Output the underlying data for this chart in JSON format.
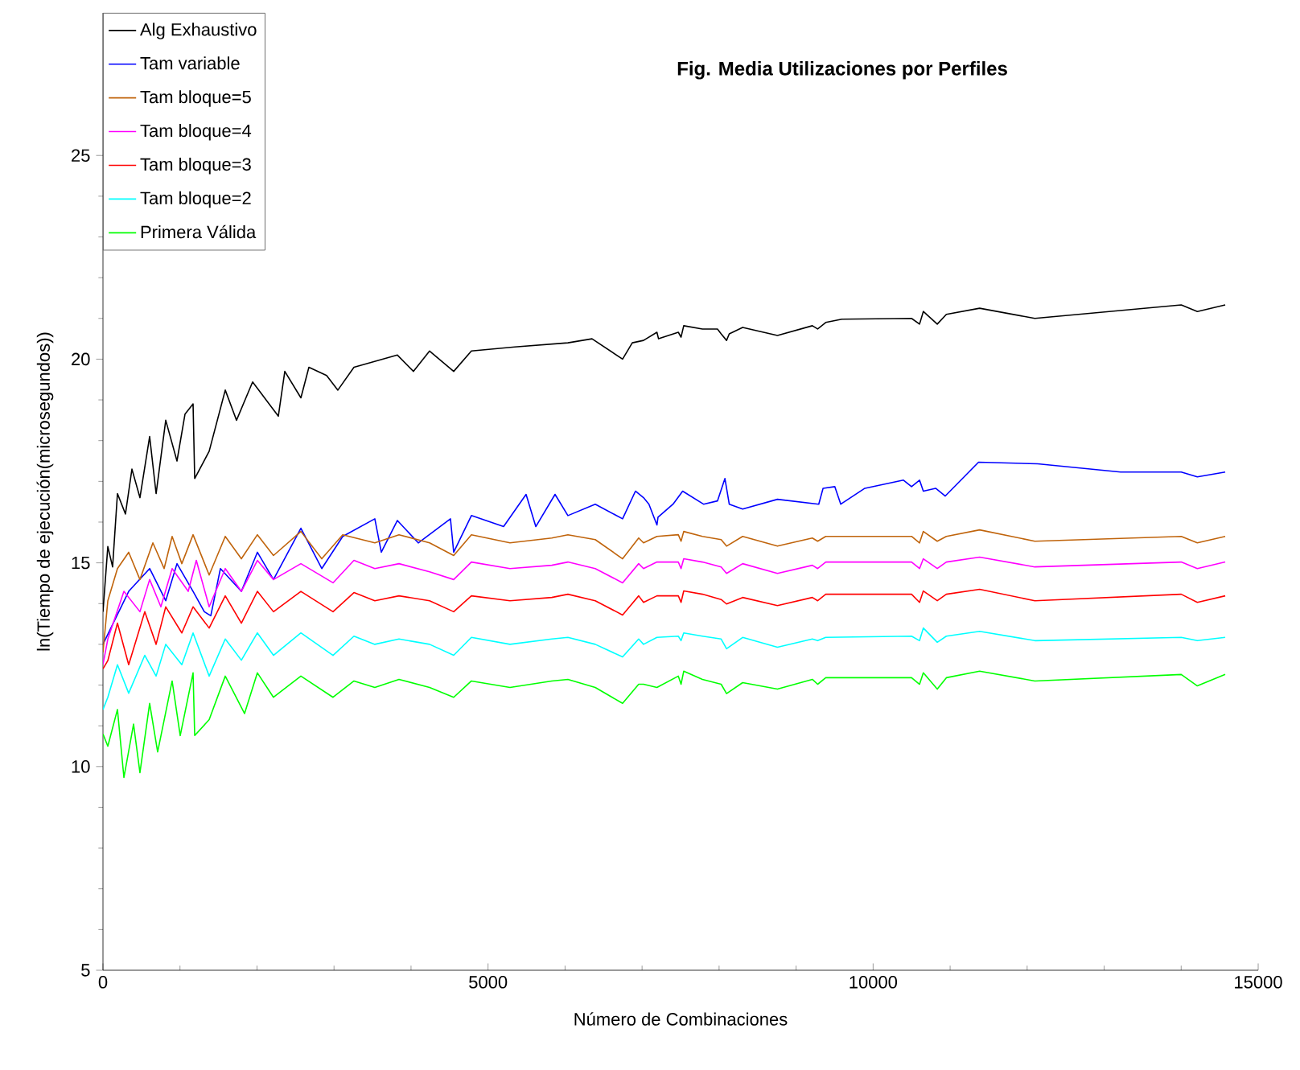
{
  "chart_data": {
    "type": "line",
    "title": "Fig. Media Utilizaciones por Perfiles",
    "xlabel": "Número de Combinaciones",
    "ylabel": "ln(Tiempo de ejecución(microsegundos))",
    "xlim": [
      0,
      15000
    ],
    "ylim": [
      5,
      28.5
    ],
    "xticks": [
      0,
      5000,
      10000,
      15000
    ],
    "yticks": [
      5,
      10,
      15,
      20,
      25
    ],
    "legend": "top left",
    "series": [
      {
        "name": "Alg Exhaustivo",
        "color": "#000000",
        "x": [
          0,
          63,
          125,
          188,
          292,
          376,
          480,
          606,
          690,
          815,
          961,
          1065,
          1170,
          1191,
          1379,
          1588,
          1734,
          1943,
          2277,
          2361,
          2570,
          2674,
          2904,
          3050,
          3259,
          3823,
          4032,
          4241,
          4554,
          4784,
          5348,
          6037,
          6350,
          6747,
          6873,
          7019,
          7193,
          7214,
          7471,
          7506,
          7541,
          7784,
          7979,
          8027,
          8097,
          8132,
          8306,
          8758,
          9211,
          9280,
          9385,
          9594,
          10499,
          10603,
          10652,
          10833,
          10951,
          11383,
          12100,
          14001,
          14210,
          14572
        ],
        "values": [
          13.8,
          15.4,
          14.9,
          16.7,
          16.2,
          17.3,
          16.6,
          18.1,
          16.7,
          18.5,
          17.5,
          18.65,
          18.9,
          17.07,
          17.74,
          19.24,
          18.5,
          19.44,
          18.6,
          19.7,
          19.05,
          19.8,
          19.6,
          19.24,
          19.8,
          20.1,
          19.7,
          20.2,
          19.7,
          20.2,
          20.3,
          20.4,
          20.5,
          20.0,
          20.4,
          20.46,
          20.66,
          20.5,
          20.66,
          20.54,
          20.82,
          20.74,
          20.74,
          20.62,
          20.46,
          20.62,
          20.78,
          20.58,
          20.82,
          20.74,
          20.9,
          20.98,
          21.0,
          20.86,
          21.17,
          20.86,
          21.1,
          21.25,
          21.0,
          21.33,
          21.17,
          21.33
        ]
      },
      {
        "name": "Tam variable",
        "color": "#0000ff",
        "x": [
          0,
          334,
          606,
          815,
          961,
          1170,
          1316,
          1400,
          1525,
          1797,
          2005,
          2214,
          2570,
          2841,
          3113,
          3530,
          3614,
          3823,
          4094,
          4512,
          4554,
          4784,
          5202,
          5494,
          5620,
          5870,
          6037,
          6392,
          6747,
          6914,
          7019,
          7089,
          7193,
          7207,
          7402,
          7527,
          7798,
          7979,
          8076,
          8132,
          8306,
          8758,
          9294,
          9350,
          9503,
          9580,
          9893,
          10394,
          10499,
          10603,
          10652,
          10812,
          10937,
          11369,
          12135,
          13214,
          14001,
          14210,
          14572
        ],
        "values": [
          13.0,
          14.3,
          14.86,
          14.07,
          14.98,
          14.3,
          13.8,
          13.7,
          14.86,
          14.3,
          15.26,
          14.59,
          15.85,
          14.86,
          15.65,
          16.08,
          15.26,
          16.04,
          15.49,
          16.08,
          15.26,
          16.16,
          15.89,
          16.68,
          15.89,
          16.68,
          16.16,
          16.44,
          16.08,
          16.76,
          16.6,
          16.44,
          15.93,
          16.12,
          16.44,
          16.76,
          16.44,
          16.52,
          17.07,
          16.44,
          16.32,
          16.56,
          16.44,
          16.83,
          16.87,
          16.44,
          16.83,
          17.03,
          16.87,
          17.03,
          16.76,
          16.83,
          16.64,
          17.47,
          17.43,
          17.23,
          17.23,
          17.11,
          17.23
        ]
      },
      {
        "name": "Tam bloque=5",
        "color": "#c0640c",
        "x": [
          0,
          63,
          188,
          334,
          480,
          648,
          794,
          898,
          1024,
          1170,
          1379,
          1588,
          1797,
          2005,
          2214,
          2570,
          2841,
          3113,
          3530,
          3844,
          4241,
          4554,
          4784,
          5285,
          5828,
          6037,
          6392,
          6747,
          6956,
          7019,
          7193,
          7471,
          7506,
          7541,
          7784,
          8027,
          8097,
          8306,
          8758,
          9211,
          9280,
          9385,
          10499,
          10603,
          10652,
          10833,
          10951,
          11383,
          12100,
          14001,
          14210,
          14572
        ],
        "values": [
          12.8,
          14.07,
          14.86,
          15.26,
          14.59,
          15.49,
          14.86,
          15.65,
          14.98,
          15.69,
          14.7,
          15.65,
          15.1,
          15.69,
          15.18,
          15.77,
          15.1,
          15.69,
          15.49,
          15.69,
          15.49,
          15.18,
          15.69,
          15.49,
          15.61,
          15.69,
          15.57,
          15.1,
          15.61,
          15.49,
          15.65,
          15.69,
          15.53,
          15.77,
          15.65,
          15.57,
          15.41,
          15.65,
          15.41,
          15.61,
          15.53,
          15.65,
          15.65,
          15.49,
          15.77,
          15.53,
          15.65,
          15.81,
          15.53,
          15.65,
          15.49,
          15.65
        ]
      },
      {
        "name": "Tam bloque=4",
        "color": "#ff00ff",
        "x": [
          0,
          63,
          272,
          480,
          606,
          752,
          898,
          1107,
          1212,
          1379,
          1588,
          1797,
          2005,
          2214,
          2570,
          2987,
          3259,
          3530,
          3844,
          4241,
          4554,
          4784,
          5285,
          5828,
          6037,
          6392,
          6747,
          6956,
          7019,
          7193,
          7471,
          7506,
          7541,
          7784,
          8027,
          8097,
          8306,
          8758,
          9211,
          9280,
          9385,
          10499,
          10603,
          10652,
          10833,
          10951,
          11383,
          12100,
          14001,
          14210,
          14572
        ],
        "values": [
          12.5,
          13.13,
          14.3,
          13.8,
          14.59,
          13.92,
          14.86,
          14.3,
          15.06,
          13.92,
          14.86,
          14.3,
          15.06,
          14.59,
          14.98,
          14.51,
          15.06,
          14.86,
          14.98,
          14.78,
          14.59,
          15.02,
          14.86,
          14.94,
          15.02,
          14.86,
          14.51,
          14.98,
          14.86,
          15.02,
          15.02,
          14.86,
          15.1,
          15.02,
          14.9,
          14.74,
          14.98,
          14.74,
          14.94,
          14.86,
          15.02,
          15.02,
          14.86,
          15.1,
          14.86,
          15.02,
          15.14,
          14.9,
          15.02,
          14.86,
          15.02
        ]
      },
      {
        "name": "Tam bloque=3",
        "color": "#ff0000",
        "x": [
          0,
          63,
          188,
          334,
          543,
          690,
          815,
          1024,
          1170,
          1379,
          1588,
          1797,
          2005,
          2214,
          2570,
          2987,
          3259,
          3530,
          3844,
          4241,
          4554,
          4784,
          5285,
          5828,
          6037,
          6392,
          6747,
          6956,
          7019,
          7193,
          7471,
          7506,
          7541,
          7784,
          8027,
          8097,
          8306,
          8758,
          9211,
          9280,
          9385,
          10499,
          10603,
          10652,
          10833,
          10951,
          11383,
          12100,
          14001,
          14210,
          14572
        ],
        "values": [
          12.4,
          12.6,
          13.52,
          12.5,
          13.8,
          13.0,
          13.92,
          13.28,
          13.92,
          13.4,
          14.19,
          13.52,
          14.3,
          13.8,
          14.3,
          13.8,
          14.27,
          14.07,
          14.19,
          14.07,
          13.8,
          14.19,
          14.07,
          14.15,
          14.23,
          14.07,
          13.72,
          14.19,
          14.03,
          14.19,
          14.19,
          14.03,
          14.31,
          14.23,
          14.1,
          13.99,
          14.15,
          13.95,
          14.15,
          14.07,
          14.23,
          14.23,
          14.03,
          14.31,
          14.07,
          14.23,
          14.35,
          14.07,
          14.23,
          14.03,
          14.19
        ]
      },
      {
        "name": "Tam bloque=2",
        "color": "#00ffff",
        "x": [
          0,
          63,
          188,
          334,
          543,
          690,
          815,
          1024,
          1170,
          1379,
          1588,
          1797,
          2005,
          2214,
          2570,
          2987,
          3259,
          3530,
          3844,
          4241,
          4554,
          4784,
          5285,
          5828,
          6037,
          6392,
          6747,
          6956,
          7019,
          7193,
          7471,
          7506,
          7541,
          7784,
          8027,
          8097,
          8306,
          8758,
          9211,
          9280,
          9385,
          10499,
          10603,
          10652,
          10833,
          10951,
          11383,
          12100,
          14001,
          14210,
          14572
        ],
        "values": [
          11.4,
          11.7,
          12.5,
          11.8,
          12.73,
          12.22,
          13.0,
          12.5,
          13.28,
          12.22,
          13.13,
          12.61,
          13.28,
          12.73,
          13.28,
          12.73,
          13.2,
          13.0,
          13.13,
          13.0,
          12.73,
          13.17,
          13.0,
          13.13,
          13.17,
          13.0,
          12.69,
          13.13,
          13.0,
          13.17,
          13.2,
          13.09,
          13.28,
          13.2,
          13.13,
          12.89,
          13.17,
          12.93,
          13.13,
          13.09,
          13.17,
          13.2,
          13.09,
          13.4,
          13.05,
          13.2,
          13.32,
          13.09,
          13.17,
          13.09,
          13.17
        ]
      },
      {
        "name": "Primera Válida",
        "color": "#00ff00",
        "x": [
          0,
          63,
          188,
          272,
          397,
          480,
          606,
          710,
          898,
          1003,
          1170,
          1191,
          1379,
          1588,
          1838,
          2005,
          2214,
          2570,
          2987,
          3259,
          3530,
          3844,
          4241,
          4554,
          4784,
          5285,
          5828,
          6037,
          6392,
          6747,
          6956,
          7019,
          7193,
          7471,
          7506,
          7541,
          7784,
          8027,
          8097,
          8306,
          8758,
          9211,
          9280,
          9385,
          10499,
          10603,
          10652,
          10833,
          10951,
          11383,
          12100,
          14001,
          14210,
          14572
        ],
        "values": [
          10.8,
          10.5,
          11.4,
          9.73,
          11.04,
          9.85,
          11.55,
          10.36,
          12.1,
          10.76,
          12.3,
          10.76,
          11.15,
          12.22,
          11.3,
          12.3,
          11.7,
          12.22,
          11.7,
          12.1,
          11.94,
          12.14,
          11.94,
          11.7,
          12.1,
          11.94,
          12.1,
          12.14,
          11.94,
          11.55,
          12.02,
          12.02,
          11.94,
          12.22,
          12.02,
          12.34,
          12.14,
          12.02,
          11.79,
          12.06,
          11.9,
          12.14,
          12.02,
          12.18,
          12.18,
          12.02,
          12.3,
          11.9,
          12.18,
          12.34,
          12.1,
          12.26,
          11.98,
          12.26
        ]
      }
    ]
  }
}
